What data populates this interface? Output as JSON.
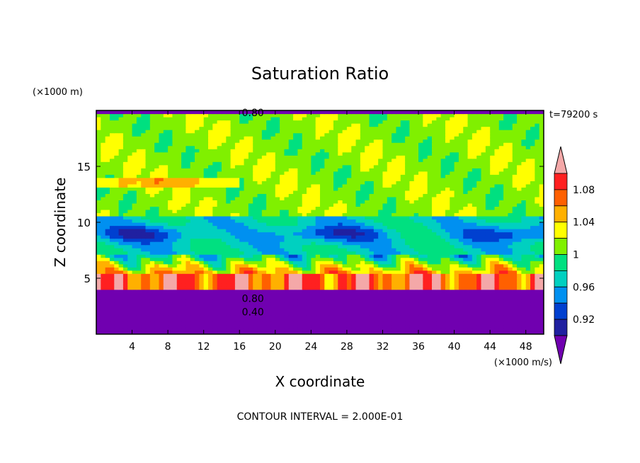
{
  "chart_data": {
    "type": "heatmap",
    "title": "Saturation Ratio",
    "xlabel": "X coordinate",
    "ylabel": "Z coordinate",
    "x_unit_label": "(×1000 m/s)",
    "y_unit_label": "(×1000 m)",
    "time_label": "t=79200 s",
    "footer": "CONTOUR INTERVAL = 2.000E-01",
    "xlim": [
      0,
      50
    ],
    "ylim": [
      0,
      20
    ],
    "x_ticks": [
      4,
      8,
      12,
      16,
      20,
      24,
      28,
      32,
      36,
      40,
      44,
      48
    ],
    "y_ticks": [
      5,
      10,
      15
    ],
    "contour_labels": [
      {
        "text": "0.80",
        "x": 17.5,
        "y": 19.8
      },
      {
        "text": "0.80",
        "x": 17.5,
        "y": 3.2
      },
      {
        "text": "0.40",
        "x": 17.5,
        "y": 2.0
      }
    ],
    "colorbar": {
      "labels": [
        "1.08",
        "1.04",
        "1",
        "0.96",
        "0.92"
      ],
      "levels": [
        0.9,
        0.92,
        0.94,
        0.96,
        0.98,
        1.0,
        1.02,
        1.04,
        1.06,
        1.08,
        1.1
      ],
      "colors": [
        "#7000b0",
        "#2020a0",
        "#0040d0",
        "#0090f0",
        "#00d0c0",
        "#00e080",
        "#80f000",
        "#ffff00",
        "#ffb000",
        "#ff6000",
        "#ff2020",
        "#f4a8a8"
      ]
    },
    "legend_placement": "right",
    "grid": false
  }
}
